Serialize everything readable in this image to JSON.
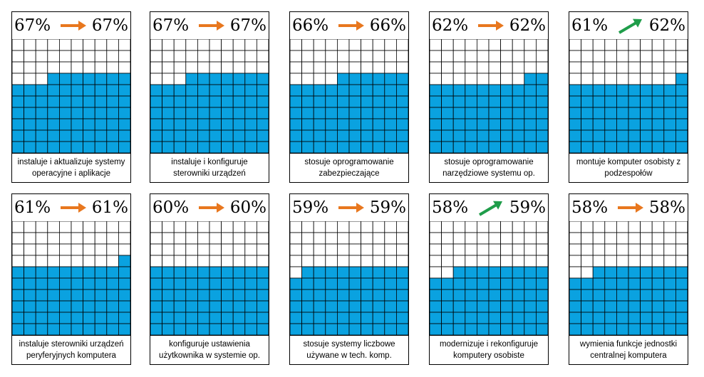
{
  "chart_data": {
    "type": "waffle",
    "panels": [
      {
        "caption": "instaluje i aktualizuje systemy operacyjne i aplikacje",
        "value_left": 67,
        "value_right": 67,
        "value_left_label": "67%",
        "value_right_label": "67%",
        "trend": "flat"
      },
      {
        "caption": "instaluje i konfiguruje sterowniki urządzeń",
        "value_left": 67,
        "value_right": 67,
        "value_left_label": "67%",
        "value_right_label": "67%",
        "trend": "flat"
      },
      {
        "caption": "stosuje oprogramowanie zabezpieczające",
        "value_left": 66,
        "value_right": 66,
        "value_left_label": "66%",
        "value_right_label": "66%",
        "trend": "flat"
      },
      {
        "caption": "stosuje oprogramowanie narzędziowe systemu op.",
        "value_left": 62,
        "value_right": 62,
        "value_left_label": "62%",
        "value_right_label": "62%",
        "trend": "flat"
      },
      {
        "caption": "montuje komputer osobisty z podzespołów",
        "value_left": 61,
        "value_right": 62,
        "value_left_label": "61%",
        "value_right_label": "62%",
        "trend": "up"
      },
      {
        "caption": "instaluje sterowniki urządzeń peryferyjnych komputera",
        "value_left": 61,
        "value_right": 61,
        "value_left_label": "61%",
        "value_right_label": "61%",
        "trend": "flat"
      },
      {
        "caption": "konfiguruje ustawienia użytkownika w systemie op.",
        "value_left": 60,
        "value_right": 60,
        "value_left_label": "60%",
        "value_right_label": "60%",
        "trend": "flat"
      },
      {
        "caption": "stosuje systemy liczbowe używane w tech. komp.",
        "value_left": 59,
        "value_right": 59,
        "value_left_label": "59%",
        "value_right_label": "59%",
        "trend": "flat"
      },
      {
        "caption": "modernizuje i rekonfiguruje komputery osobiste",
        "value_left": 58,
        "value_right": 59,
        "value_left_label": "58%",
        "value_right_label": "59%",
        "trend": "up"
      },
      {
        "caption": "wymienia funkcje jednostki centralnej komputera",
        "value_left": 58,
        "value_right": 58,
        "value_left_label": "58%",
        "value_right_label": "58%",
        "trend": "flat"
      }
    ],
    "grid_rows": 10,
    "grid_cols": 10,
    "colors": {
      "fill": "#0aa2e0",
      "empty": "#ffffff",
      "grid_line": "#000000",
      "arrow_flat": "#e8771e",
      "arrow_up": "#1f9d4a"
    }
  }
}
